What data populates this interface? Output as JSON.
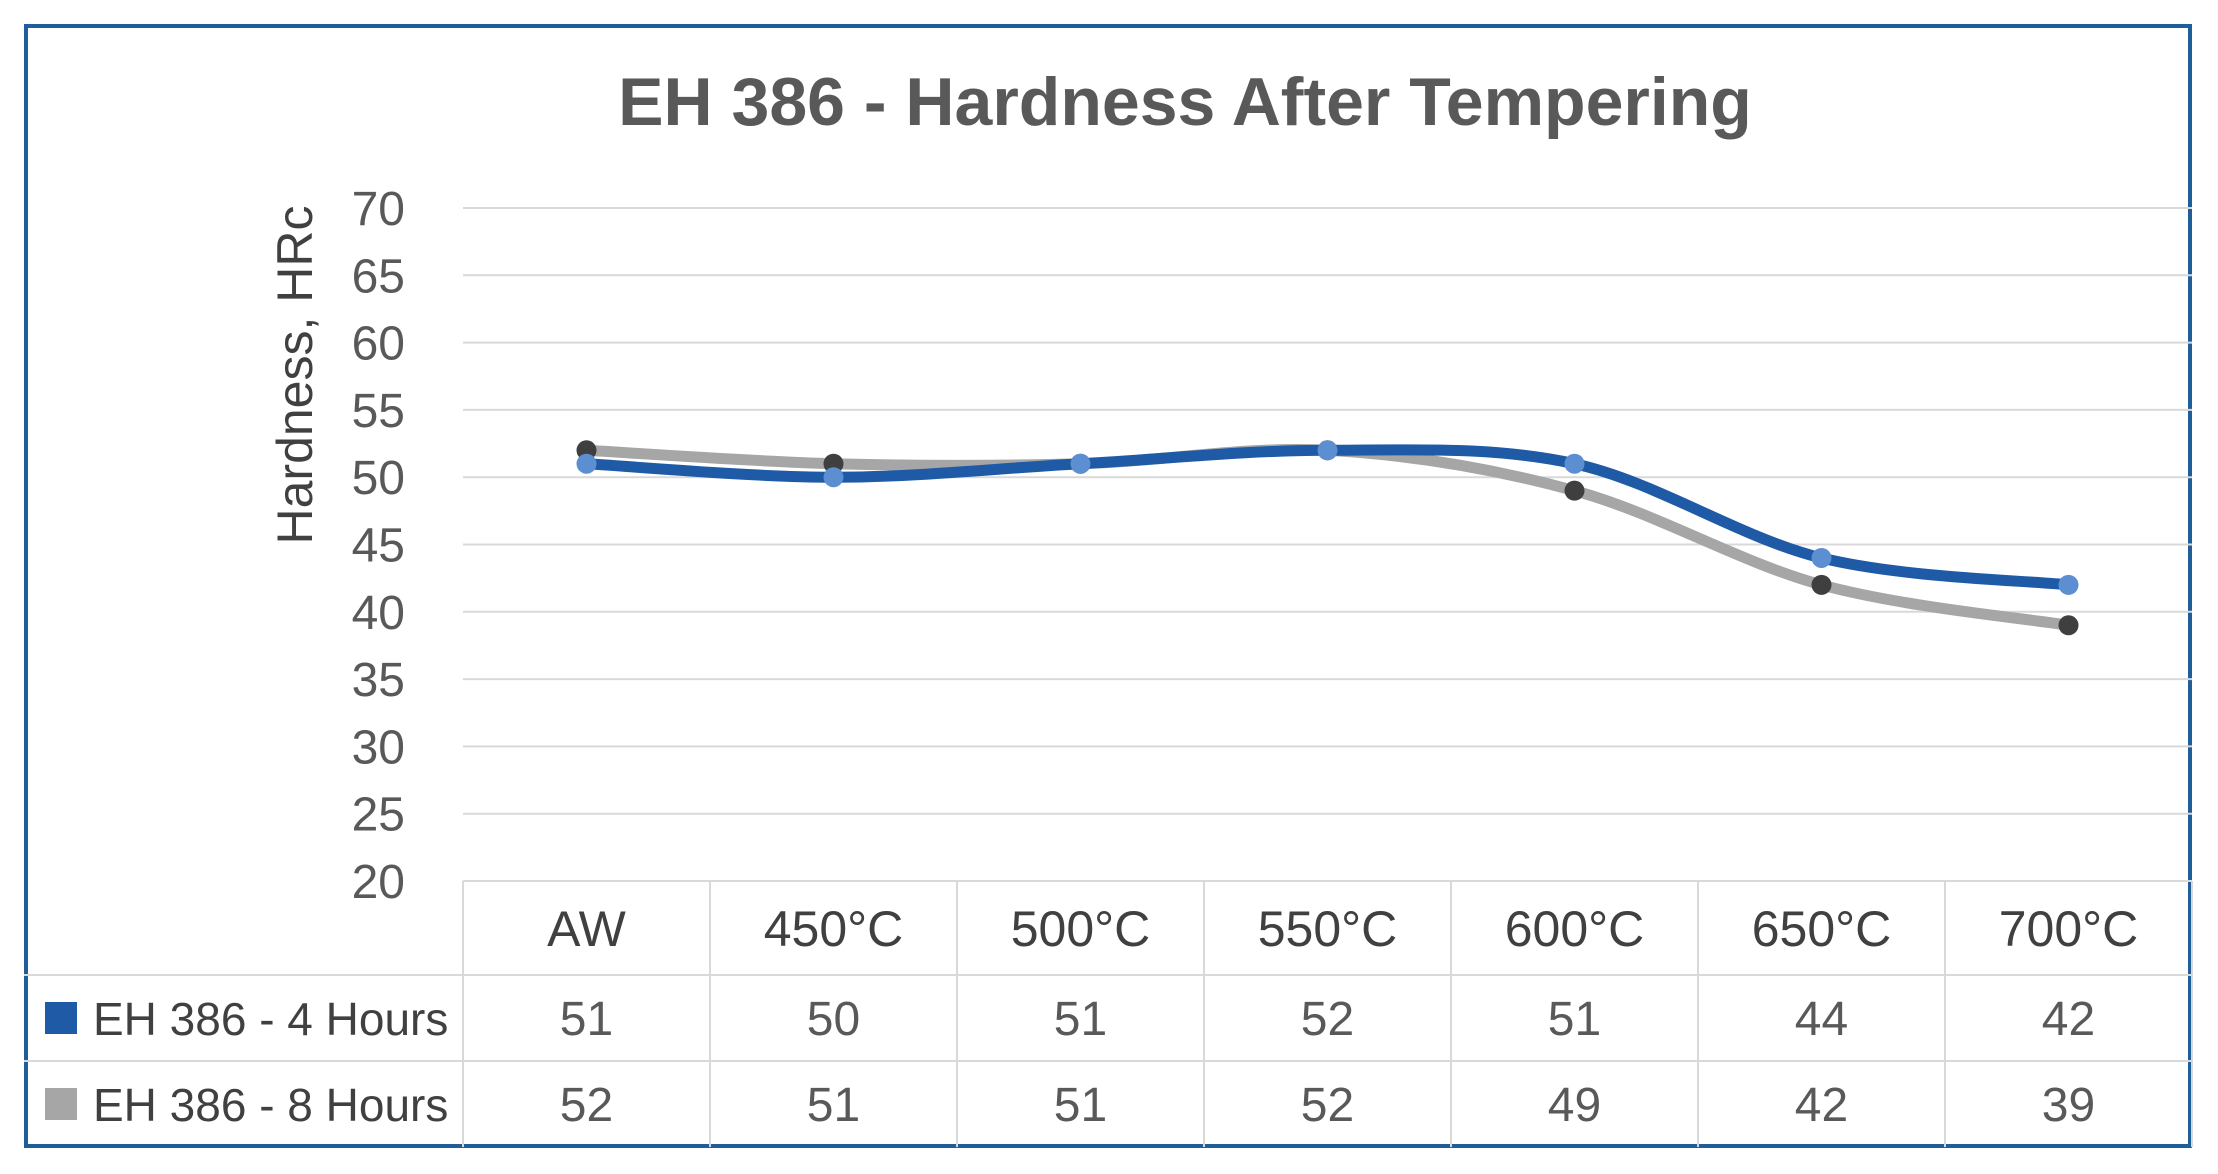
{
  "chart_data": {
    "type": "line",
    "title": "EH 386 - Hardness After Tempering",
    "xlabel": "",
    "ylabel": "Hardness, HRc",
    "ylim": [
      20,
      70
    ],
    "yticks": [
      20,
      25,
      30,
      35,
      40,
      45,
      50,
      55,
      60,
      65,
      70
    ],
    "grid": true,
    "smooth": true,
    "legend": "data-table",
    "categories": [
      "AW",
      "450°C",
      "500°C",
      "550°C",
      "600°C",
      "650°C",
      "700°C"
    ],
    "series": [
      {
        "name": "EH 386 - 4 Hours",
        "values": [
          51,
          50,
          51,
          52,
          51,
          44,
          42
        ],
        "color": "#1f5aa6",
        "marker_color": "#5b8fd1"
      },
      {
        "name": "EH 386 - 8 Hours",
        "values": [
          52,
          51,
          51,
          52,
          49,
          42,
          39
        ],
        "color": "#a6a6a6",
        "marker_color": "#3f3f3f"
      }
    ]
  }
}
